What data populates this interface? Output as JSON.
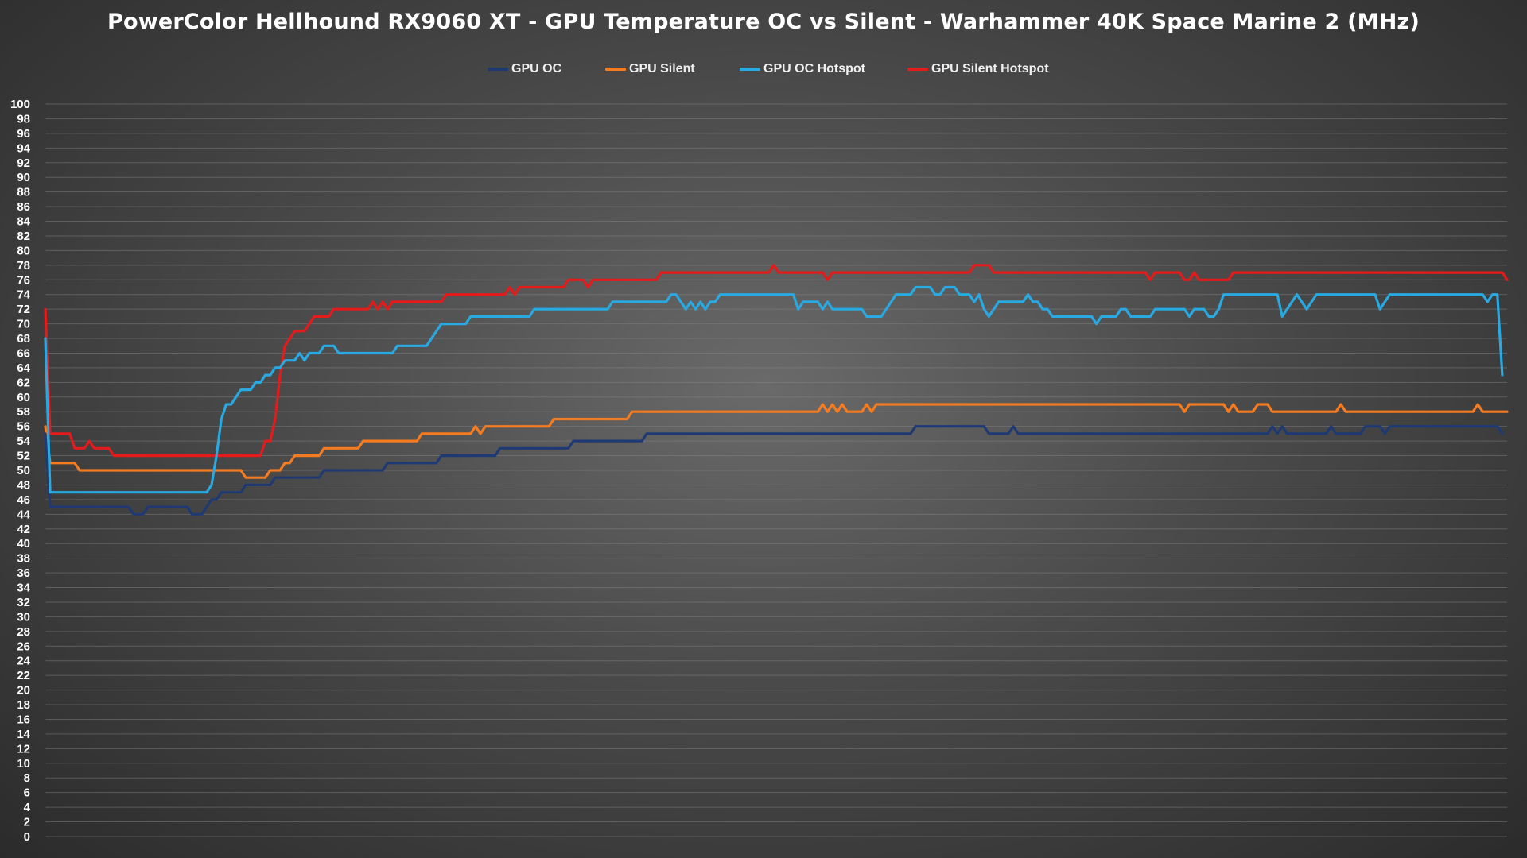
{
  "chart_data": {
    "type": "line",
    "title": "PowerColor Hellhound RX9060 XT - GPU Temperature OC vs Silent - Warhammer 40K Space Marine 2 (MHz)",
    "xlabel": "",
    "ylabel": "",
    "ylim": [
      0,
      100
    ],
    "ytick_step": 2,
    "grid": true,
    "legend_position": "top-center",
    "x_count": 300,
    "series": [
      {
        "name": "GPU OC",
        "color": "#1f3a73",
        "values": [
          [
            0,
            55
          ],
          [
            1,
            45
          ],
          [
            16,
            45
          ],
          [
            17,
            45
          ],
          [
            18,
            44
          ],
          [
            20,
            44
          ],
          [
            21,
            45
          ],
          [
            29,
            45
          ],
          [
            30,
            44
          ],
          [
            32,
            44
          ],
          [
            33,
            45
          ],
          [
            34,
            46
          ],
          [
            35,
            46
          ],
          [
            36,
            47
          ],
          [
            40,
            47
          ],
          [
            41,
            48
          ],
          [
            46,
            48
          ],
          [
            47,
            49
          ],
          [
            56,
            49
          ],
          [
            57,
            50
          ],
          [
            69,
            50
          ],
          [
            70,
            51
          ],
          [
            80,
            51
          ],
          [
            81,
            52
          ],
          [
            92,
            52
          ],
          [
            93,
            53
          ],
          [
            107,
            53
          ],
          [
            108,
            54
          ],
          [
            122,
            54
          ],
          [
            123,
            55
          ],
          [
            177,
            55
          ],
          [
            178,
            56
          ],
          [
            192,
            56
          ],
          [
            193,
            55
          ],
          [
            197,
            55
          ],
          [
            198,
            56
          ],
          [
            199,
            55
          ],
          [
            250,
            55
          ],
          [
            251,
            56
          ],
          [
            252,
            55
          ],
          [
            253,
            56
          ],
          [
            254,
            55
          ],
          [
            262,
            55
          ],
          [
            263,
            56
          ],
          [
            264,
            55
          ],
          [
            269,
            55
          ],
          [
            270,
            56
          ],
          [
            273,
            56
          ],
          [
            274,
            55
          ],
          [
            275,
            56
          ],
          [
            297,
            56
          ],
          [
            298,
            55
          ]
        ]
      },
      {
        "name": "GPU Silent",
        "color": "#f47b20",
        "values": [
          [
            0,
            56
          ],
          [
            1,
            51
          ],
          [
            6,
            51
          ],
          [
            7,
            50
          ],
          [
            40,
            50
          ],
          [
            41,
            49
          ],
          [
            45,
            49
          ],
          [
            46,
            50
          ],
          [
            48,
            50
          ],
          [
            49,
            51
          ],
          [
            50,
            51
          ],
          [
            51,
            52
          ],
          [
            56,
            52
          ],
          [
            57,
            53
          ],
          [
            64,
            53
          ],
          [
            65,
            54
          ],
          [
            76,
            54
          ],
          [
            77,
            55
          ],
          [
            87,
            55
          ],
          [
            88,
            56
          ],
          [
            89,
            55
          ],
          [
            90,
            56
          ],
          [
            103,
            56
          ],
          [
            104,
            57
          ],
          [
            119,
            57
          ],
          [
            120,
            58
          ],
          [
            158,
            58
          ],
          [
            159,
            59
          ],
          [
            160,
            58
          ],
          [
            161,
            59
          ],
          [
            162,
            58
          ],
          [
            163,
            59
          ],
          [
            164,
            58
          ],
          [
            167,
            58
          ],
          [
            168,
            59
          ],
          [
            169,
            58
          ],
          [
            170,
            59
          ],
          [
            232,
            59
          ],
          [
            233,
            58
          ],
          [
            234,
            59
          ],
          [
            241,
            59
          ],
          [
            242,
            58
          ],
          [
            243,
            59
          ],
          [
            244,
            58
          ],
          [
            247,
            58
          ],
          [
            248,
            59
          ],
          [
            250,
            59
          ],
          [
            251,
            58
          ],
          [
            264,
            58
          ],
          [
            265,
            59
          ],
          [
            266,
            58
          ],
          [
            292,
            58
          ],
          [
            293,
            59
          ],
          [
            294,
            58
          ],
          [
            299,
            58
          ]
        ]
      },
      {
        "name": "GPU OC Hotspot",
        "color": "#29a9e1",
        "values": [
          [
            0,
            68
          ],
          [
            1,
            47
          ],
          [
            33,
            47
          ],
          [
            34,
            48
          ],
          [
            35,
            52
          ],
          [
            36,
            57
          ],
          [
            37,
            59
          ],
          [
            38,
            59
          ],
          [
            39,
            60
          ],
          [
            40,
            61
          ],
          [
            42,
            61
          ],
          [
            43,
            62
          ],
          [
            44,
            62
          ],
          [
            45,
            63
          ],
          [
            46,
            63
          ],
          [
            47,
            64
          ],
          [
            48,
            64
          ],
          [
            49,
            65
          ],
          [
            51,
            65
          ],
          [
            52,
            66
          ],
          [
            53,
            65
          ],
          [
            54,
            66
          ],
          [
            56,
            66
          ],
          [
            57,
            67
          ],
          [
            59,
            67
          ],
          [
            60,
            66
          ],
          [
            71,
            66
          ],
          [
            72,
            67
          ],
          [
            78,
            67
          ],
          [
            79,
            68
          ],
          [
            80,
            69
          ],
          [
            81,
            70
          ],
          [
            86,
            70
          ],
          [
            87,
            71
          ],
          [
            99,
            71
          ],
          [
            100,
            72
          ],
          [
            115,
            72
          ],
          [
            116,
            73
          ],
          [
            127,
            73
          ],
          [
            128,
            74
          ],
          [
            129,
            74
          ],
          [
            130,
            73
          ],
          [
            131,
            72
          ],
          [
            132,
            73
          ],
          [
            133,
            72
          ],
          [
            134,
            73
          ],
          [
            135,
            72
          ],
          [
            136,
            73
          ],
          [
            137,
            73
          ],
          [
            138,
            74
          ],
          [
            153,
            74
          ],
          [
            154,
            72
          ],
          [
            155,
            73
          ],
          [
            158,
            73
          ],
          [
            159,
            72
          ],
          [
            160,
            73
          ],
          [
            161,
            72
          ],
          [
            167,
            72
          ],
          [
            168,
            71
          ],
          [
            171,
            71
          ],
          [
            172,
            72
          ],
          [
            173,
            73
          ],
          [
            174,
            74
          ],
          [
            177,
            74
          ],
          [
            178,
            75
          ],
          [
            181,
            75
          ],
          [
            182,
            74
          ],
          [
            183,
            74
          ],
          [
            184,
            75
          ],
          [
            186,
            75
          ],
          [
            187,
            74
          ],
          [
            189,
            74
          ],
          [
            190,
            73
          ],
          [
            191,
            74
          ],
          [
            192,
            72
          ],
          [
            193,
            71
          ],
          [
            194,
            72
          ],
          [
            195,
            73
          ],
          [
            200,
            73
          ],
          [
            201,
            74
          ],
          [
            202,
            73
          ],
          [
            203,
            73
          ],
          [
            204,
            72
          ],
          [
            205,
            72
          ],
          [
            206,
            71
          ],
          [
            214,
            71
          ],
          [
            215,
            70
          ],
          [
            216,
            71
          ],
          [
            219,
            71
          ],
          [
            220,
            72
          ],
          [
            221,
            72
          ],
          [
            222,
            71
          ],
          [
            226,
            71
          ],
          [
            227,
            72
          ],
          [
            233,
            72
          ],
          [
            234,
            71
          ],
          [
            235,
            72
          ],
          [
            237,
            72
          ],
          [
            238,
            71
          ],
          [
            239,
            71
          ],
          [
            240,
            72
          ],
          [
            241,
            74
          ],
          [
            252,
            74
          ],
          [
            253,
            71
          ],
          [
            254,
            72
          ],
          [
            255,
            73
          ],
          [
            256,
            74
          ],
          [
            257,
            73
          ],
          [
            258,
            72
          ],
          [
            259,
            73
          ],
          [
            260,
            74
          ],
          [
            272,
            74
          ],
          [
            273,
            72
          ],
          [
            274,
            73
          ],
          [
            275,
            74
          ],
          [
            294,
            74
          ],
          [
            295,
            73
          ],
          [
            296,
            74
          ],
          [
            297,
            74
          ],
          [
            298,
            63
          ]
        ]
      },
      {
        "name": "GPU Silent Hotspot",
        "color": "#e41b1b",
        "values": [
          [
            0,
            72
          ],
          [
            1,
            55
          ],
          [
            5,
            55
          ],
          [
            6,
            53
          ],
          [
            8,
            53
          ],
          [
            9,
            54
          ],
          [
            10,
            53
          ],
          [
            13,
            53
          ],
          [
            14,
            52
          ],
          [
            44,
            52
          ],
          [
            45,
            54
          ],
          [
            46,
            54
          ],
          [
            47,
            57
          ],
          [
            48,
            63
          ],
          [
            49,
            67
          ],
          [
            50,
            68
          ],
          [
            51,
            69
          ],
          [
            53,
            69
          ],
          [
            54,
            70
          ],
          [
            55,
            71
          ],
          [
            58,
            71
          ],
          [
            59,
            72
          ],
          [
            66,
            72
          ],
          [
            67,
            73
          ],
          [
            68,
            72
          ],
          [
            69,
            73
          ],
          [
            70,
            72
          ],
          [
            71,
            73
          ],
          [
            81,
            73
          ],
          [
            82,
            74
          ],
          [
            94,
            74
          ],
          [
            95,
            75
          ],
          [
            96,
            74
          ],
          [
            97,
            75
          ],
          [
            106,
            75
          ],
          [
            107,
            76
          ],
          [
            110,
            76
          ],
          [
            111,
            75
          ],
          [
            112,
            76
          ],
          [
            125,
            76
          ],
          [
            126,
            77
          ],
          [
            148,
            77
          ],
          [
            149,
            78
          ],
          [
            150,
            77
          ],
          [
            159,
            77
          ],
          [
            160,
            76
          ],
          [
            161,
            77
          ],
          [
            189,
            77
          ],
          [
            190,
            78
          ],
          [
            193,
            78
          ],
          [
            194,
            77
          ],
          [
            225,
            77
          ],
          [
            226,
            76
          ],
          [
            227,
            77
          ],
          [
            232,
            77
          ],
          [
            233,
            76
          ],
          [
            234,
            76
          ],
          [
            235,
            77
          ],
          [
            236,
            76
          ],
          [
            237,
            76
          ],
          [
            238,
            76
          ],
          [
            239,
            76
          ],
          [
            242,
            76
          ],
          [
            243,
            77
          ],
          [
            298,
            77
          ],
          [
            299,
            76
          ]
        ]
      }
    ]
  }
}
